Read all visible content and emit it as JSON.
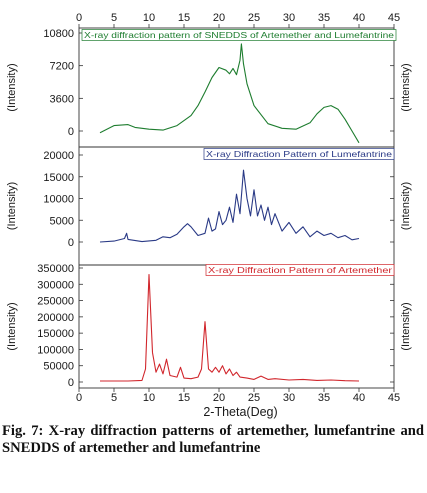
{
  "caption": "Fig. 7: X-ray diffraction patterns of artemether, lumefantrine and SNEDDS of artemether and lumefantrine",
  "chart_data": {
    "type": "line",
    "xlabel": "2-Theta(Deg)",
    "xlim": [
      0,
      45
    ],
    "x_ticks": [
      "0",
      "5",
      "10",
      "15",
      "20",
      "25",
      "30",
      "35",
      "40",
      "45"
    ],
    "panels": [
      {
        "title": "X-ray diffraction pattern of SNEDDS of Artemether and Lumefantrine",
        "ylabel": "(Intensity)",
        "color": "#1e7d2f",
        "ylim": [
          -1500,
          10800
        ],
        "y_ticks": [
          "0",
          "3600",
          "7200",
          "10800"
        ],
        "x": [
          3,
          5,
          7,
          8,
          10,
          12,
          14,
          16,
          17,
          18,
          19,
          20,
          21,
          21.5,
          22,
          22.5,
          23,
          23.2,
          23.5,
          24,
          25,
          27,
          29,
          31,
          33,
          34,
          35,
          36,
          37,
          38,
          39,
          40
        ],
        "y": [
          -200,
          600,
          700,
          400,
          200,
          100,
          600,
          1700,
          2800,
          4300,
          5900,
          7000,
          6700,
          6300,
          6900,
          6200,
          7800,
          9600,
          7400,
          5200,
          2800,
          800,
          300,
          200,
          900,
          1900,
          2600,
          2800,
          2400,
          1300,
          0,
          -1300
        ]
      },
      {
        "title": "X-ray Diffraction Pattern of Lumefantrine",
        "ylabel": "(Intensity)",
        "color": "#2a3a86",
        "ylim": [
          -1500,
          20000
        ],
        "y_ticks": [
          "0",
          "5000",
          "10000",
          "15000",
          "20000"
        ],
        "x": [
          3,
          5,
          6.5,
          6.8,
          7,
          9,
          11,
          12,
          13,
          14,
          15,
          15.5,
          16,
          17,
          18,
          18.5,
          19,
          19.5,
          20,
          20.5,
          21,
          21.5,
          22,
          22.5,
          23,
          23.5,
          24,
          24.5,
          25,
          25.5,
          26,
          26.5,
          27,
          27.5,
          28,
          29,
          30,
          31,
          32,
          33,
          34,
          35,
          36,
          37,
          38,
          39,
          40
        ],
        "y": [
          0,
          200,
          800,
          2000,
          600,
          100,
          400,
          1200,
          1000,
          1800,
          3500,
          4200,
          3500,
          1500,
          2000,
          5500,
          2500,
          3000,
          7000,
          4000,
          5000,
          8000,
          4500,
          11000,
          6500,
          16500,
          10000,
          6000,
          12000,
          6000,
          8500,
          5000,
          8000,
          4000,
          6500,
          2500,
          4500,
          2000,
          3500,
          1200,
          2500,
          1500,
          2000,
          1000,
          1500,
          500,
          800
        ]
      },
      {
        "title": "X-ray Diffraction Pattern of Artemether",
        "ylabel": "(Intensity)",
        "color": "#d1262c",
        "ylim": [
          -8000,
          350000
        ],
        "y_ticks": [
          "0",
          "50000",
          "100000",
          "150000",
          "200000",
          "250000",
          "300000",
          "350000"
        ],
        "x": [
          3,
          7,
          9,
          9.5,
          10,
          10.5,
          11,
          11.5,
          12,
          12.5,
          13,
          14,
          14.5,
          15,
          16,
          17,
          17.5,
          18,
          18.5,
          19,
          19.5,
          20,
          20.5,
          21,
          21.5,
          22,
          22.5,
          23,
          24,
          25,
          26,
          27,
          28,
          30,
          32,
          34,
          36,
          38,
          40
        ],
        "y": [
          3000,
          3000,
          5000,
          40000,
          330000,
          90000,
          30000,
          55000,
          25000,
          70000,
          20000,
          15000,
          45000,
          12000,
          10000,
          15000,
          40000,
          185000,
          40000,
          30000,
          45000,
          30000,
          50000,
          25000,
          40000,
          20000,
          30000,
          15000,
          12000,
          8000,
          18000,
          8000,
          10000,
          6000,
          8000,
          5000,
          6000,
          4000,
          3000
        ]
      }
    ]
  }
}
